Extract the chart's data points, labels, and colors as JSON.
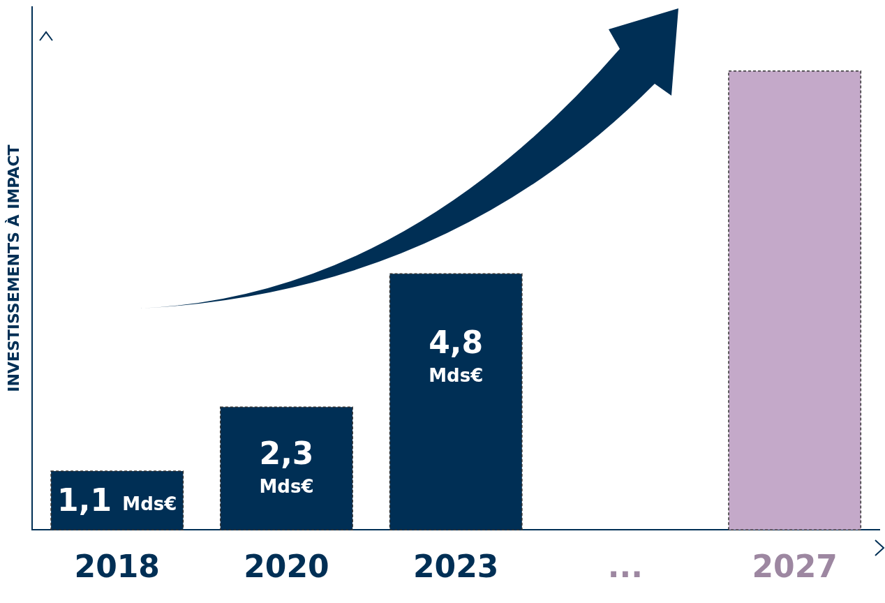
{
  "chart_data": {
    "type": "bar",
    "ylabel": "INVESTISSEMENTS À IMPACT",
    "categories": [
      "2018",
      "2020",
      "2023",
      "...",
      "2027"
    ],
    "values": [
      1.1,
      2.3,
      4.8,
      null,
      8.6
    ],
    "colors": [
      "#002f55",
      "#002f55",
      "#002f55",
      "#002f55",
      "#c4a9c9"
    ],
    "value_labels": [
      "1,1 Mds€",
      "2,3 Mds€",
      "4,8 Mds€",
      null,
      null
    ],
    "ylim": [
      0,
      9.8
    ],
    "tick_labels": "x",
    "grid": false,
    "legend": false
  }
}
